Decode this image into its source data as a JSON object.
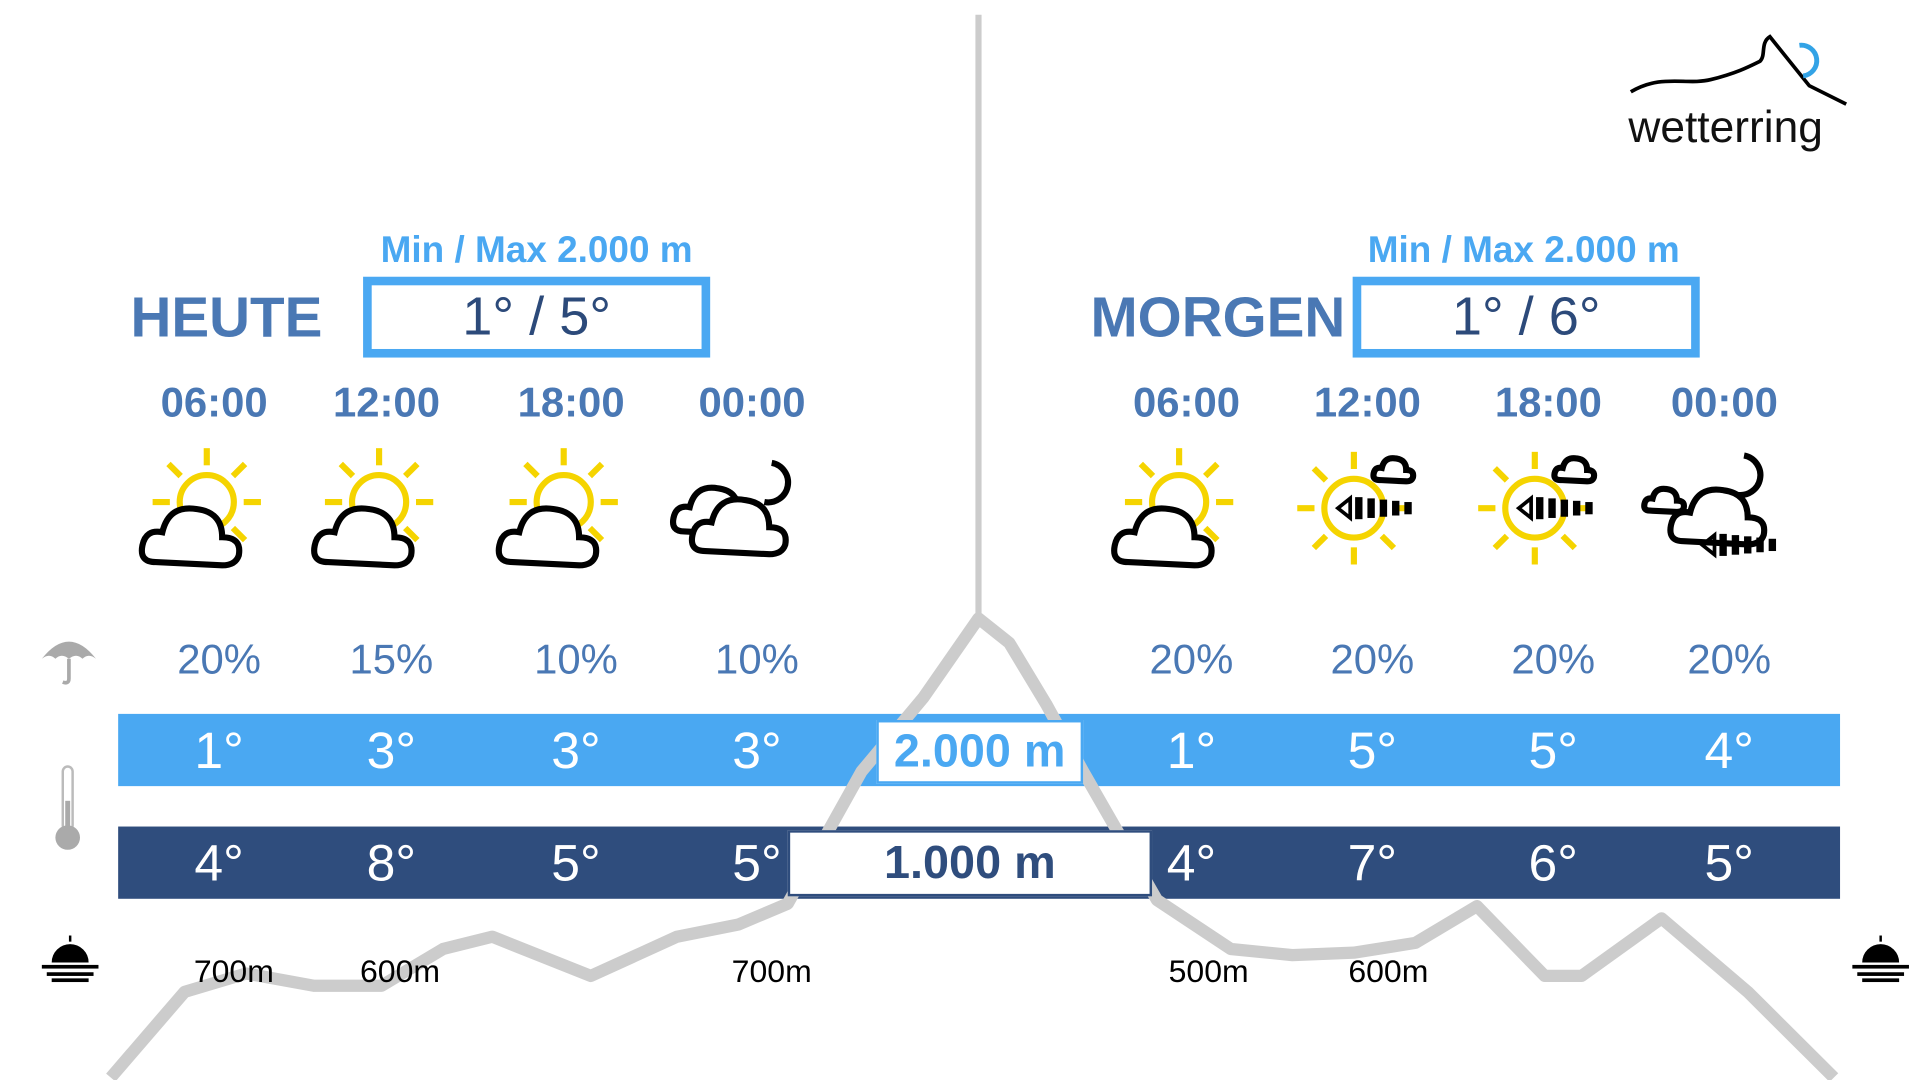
{
  "brand": {
    "logo_text": "wetterring"
  },
  "today": {
    "label": "HEUTE",
    "minmax_caption": "Min / Max 2.000 m",
    "minmax": "1° / 5°",
    "times": [
      "06:00",
      "12:00",
      "18:00",
      "00:00"
    ],
    "icons": [
      "sun-cloud",
      "sun-cloud",
      "sun-cloud",
      "moon-cloud"
    ],
    "precip": [
      "20%",
      "15%",
      "10%",
      "10%"
    ],
    "temp_2000": [
      "1°",
      "3°",
      "3°",
      "3°"
    ],
    "temp_1000": [
      "4°",
      "8°",
      "5°",
      "5°"
    ],
    "zero_degree": [
      "700m",
      "600m",
      "700m"
    ]
  },
  "tomorrow": {
    "label": "MORGEN",
    "minmax_caption": "Min / Max 2.000 m",
    "minmax": "1° / 6°",
    "times": [
      "06:00",
      "12:00",
      "18:00",
      "00:00"
    ],
    "icons": [
      "sun-cloud",
      "sun-wind-cloud",
      "sun-wind-cloud",
      "moon-cloud-wind"
    ],
    "precip": [
      "20%",
      "20%",
      "20%",
      "20%"
    ],
    "temp_2000": [
      "1°",
      "5°",
      "5°",
      "4°"
    ],
    "temp_1000": [
      "4°",
      "7°",
      "6°",
      "5°"
    ],
    "zero_degree": [
      "500m",
      "600m"
    ]
  },
  "levels": {
    "high": "2.000 m",
    "low": "1.000 m"
  },
  "colors": {
    "light_blue": "#4aa8f2",
    "dark_blue": "#2f4d7d",
    "heading_blue": "#4a78b4",
    "sun": "#f5d400",
    "mountain": "#cccccc"
  }
}
